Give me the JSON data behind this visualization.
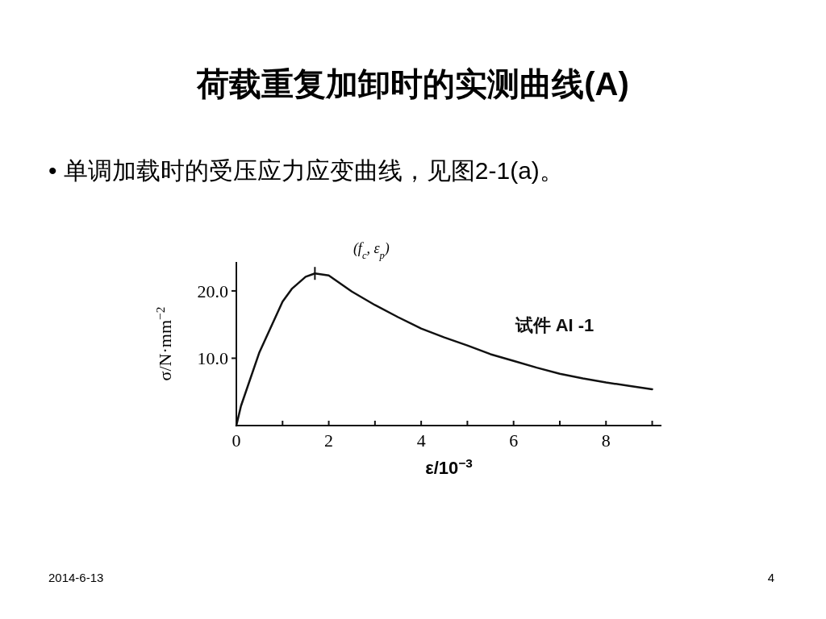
{
  "chart_data": {
    "type": "line",
    "title": "荷载重复加卸时的实测曲线(A)",
    "subtitle": "•  单调加载时的受压应力应变曲线，见图2-1(a)。",
    "xlabel": "ε/10$^{−3}$",
    "ylabel": "σ/N·mm$^{−2}$",
    "xlim": [
      0,
      9.2
    ],
    "ylim": [
      0,
      24.3
    ],
    "xticks": [
      0,
      {
        "value": 1,
        "label": null
      },
      2,
      {
        "value": 3,
        "label": null
      },
      4,
      {
        "value": 5,
        "label": null
      },
      6,
      {
        "value": 7,
        "label": null
      },
      8,
      {
        "value": 9,
        "label": null
      }
    ],
    "yticks": [
      {
        "value": 10,
        "label": "10.0"
      },
      {
        "value": 20,
        "label": "20.0"
      }
    ],
    "x": [
      0,
      0.1,
      0.5,
      1.0,
      1.2,
      1.5,
      1.7,
      2.0,
      2.5,
      3.0,
      3.5,
      4.0,
      4.5,
      5.0,
      5.5,
      6.0,
      6.5,
      7.0,
      7.5,
      8.0,
      8.5,
      9.0
    ],
    "series": [
      {
        "name": "试件 AI -1",
        "color": "#111111",
        "values": [
          0,
          2.9,
          10.9,
          18.4,
          20.3,
          22.1,
          22.6,
          22.3,
          19.9,
          17.9,
          16.1,
          14.4,
          13.1,
          11.9,
          10.6,
          9.6,
          8.6,
          7.7,
          7.0,
          6.4,
          5.9,
          5.4
        ]
      }
    ],
    "annotations": [
      {
        "text": "(f$_{c}$, ε$_{p}$)",
        "x": 1.7,
        "y": 22.6
      },
      "2014-6-13",
      "4"
    ],
    "grid": false,
    "legend": false,
    "marker": "none",
    "line_style": "solid"
  }
}
